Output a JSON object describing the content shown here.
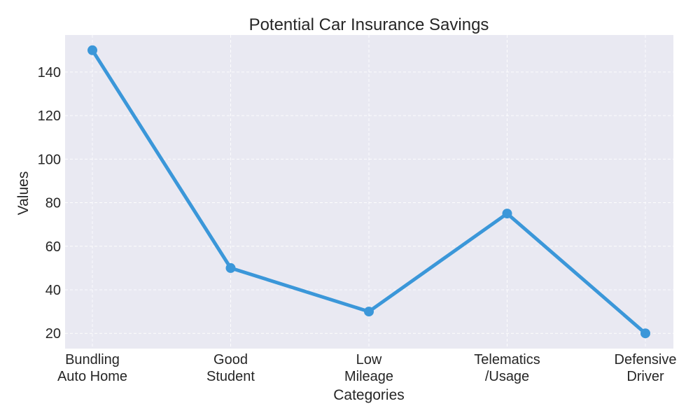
{
  "chart_data": {
    "type": "line",
    "title": "Potential Car Insurance Savings",
    "xlabel": "Categories",
    "ylabel": "Values",
    "categories": [
      [
        "Bundling",
        "Auto Home"
      ],
      [
        "Good",
        "Student"
      ],
      [
        "Low",
        "Mileage"
      ],
      [
        "Telematics",
        "/Usage"
      ],
      [
        "Defensive",
        "Driver"
      ]
    ],
    "values": [
      150,
      50,
      30,
      75,
      20
    ],
    "yticks": [
      20,
      40,
      60,
      80,
      100,
      120,
      140
    ],
    "ylim": [
      13,
      157
    ],
    "grid": true,
    "line_color": "#3b97d9",
    "plot_bg": "#e9e9f2"
  }
}
